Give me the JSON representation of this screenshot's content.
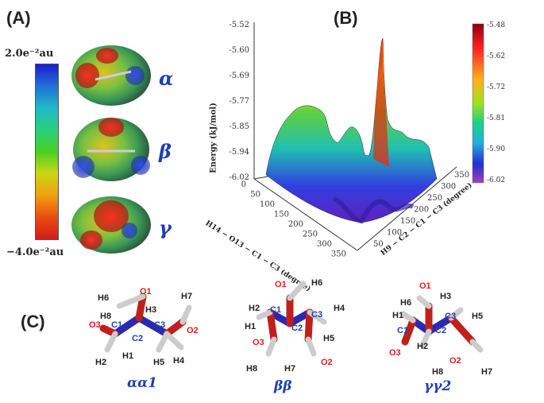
{
  "panelA": {
    "label": "(A)",
    "colorbar_top": "2.0e⁻²au",
    "colorbar_bottom": "−4.0e⁻²au",
    "molecules": [
      "α",
      "β",
      "γ"
    ]
  },
  "panelB": {
    "label": "(B)",
    "zlabel": "Energy (kJ/mol)",
    "zticks": [
      "-5.52",
      "-5.60",
      "-5.69",
      "-5.77",
      "-5.85",
      "-5.94",
      "-6.02"
    ],
    "xlabel": "H14 − O13 − C1 − C3 (degree)",
    "xticks": [
      "0",
      "50",
      "100",
      "150",
      "200",
      "250",
      "300",
      "350"
    ],
    "ylabel": "H9 − C2 − C1 − C3 (degree)",
    "yticks": [
      "50",
      "100",
      "150",
      "200",
      "250",
      "300",
      "350"
    ],
    "colorbar_ticks": [
      "-5.48",
      "-5.62",
      "-5.72",
      "-5.81",
      "-5.90",
      "-6.02"
    ]
  },
  "panelC": {
    "label": "(C)",
    "conformers": [
      {
        "name": "αα1",
        "atoms": {
          "H6": "H6",
          "O1": "O1",
          "H7": "H7",
          "H8": "H8",
          "H3": "H3",
          "O3": "O3",
          "C1": "C1",
          "C3": "C3",
          "O2": "O2",
          "C2": "C2",
          "H1": "H1",
          "H2": "H2",
          "H5": "H5",
          "H4": "H4"
        }
      },
      {
        "name": "ββ",
        "atoms": {
          "O1": "O1",
          "H6": "H6",
          "H2": "H2",
          "C1": "C1",
          "C3": "C3",
          "H4": "H4",
          "H1": "H1",
          "C2": "C2",
          "H5": "H5",
          "O3": "O3",
          "H8": "H8",
          "H7": "H7",
          "O2": "O2"
        }
      },
      {
        "name": "γγ2",
        "atoms": {
          "O1": "O1",
          "H6": "H6",
          "H3": "H3",
          "H1": "H1",
          "C3": "C3",
          "H5": "H5",
          "C1": "C1",
          "C2": "C2",
          "H2": "H2",
          "O3": "O3",
          "O2": "O2",
          "H8": "H8",
          "H7": "H7"
        }
      }
    ]
  },
  "chart_data": {
    "type": "surface",
    "title": "",
    "zlabel": "Energy (kJ/mol)",
    "xlabel": "H14 − O13 − C1 − C3 (degree)",
    "ylabel": "H9 − C2 − C1 − C3 (degree)",
    "xlim": [
      0,
      360
    ],
    "ylim": [
      0,
      360
    ],
    "zlim": [
      -6.02,
      -5.48
    ],
    "colorbar": [
      -6.02,
      -5.48
    ]
  }
}
